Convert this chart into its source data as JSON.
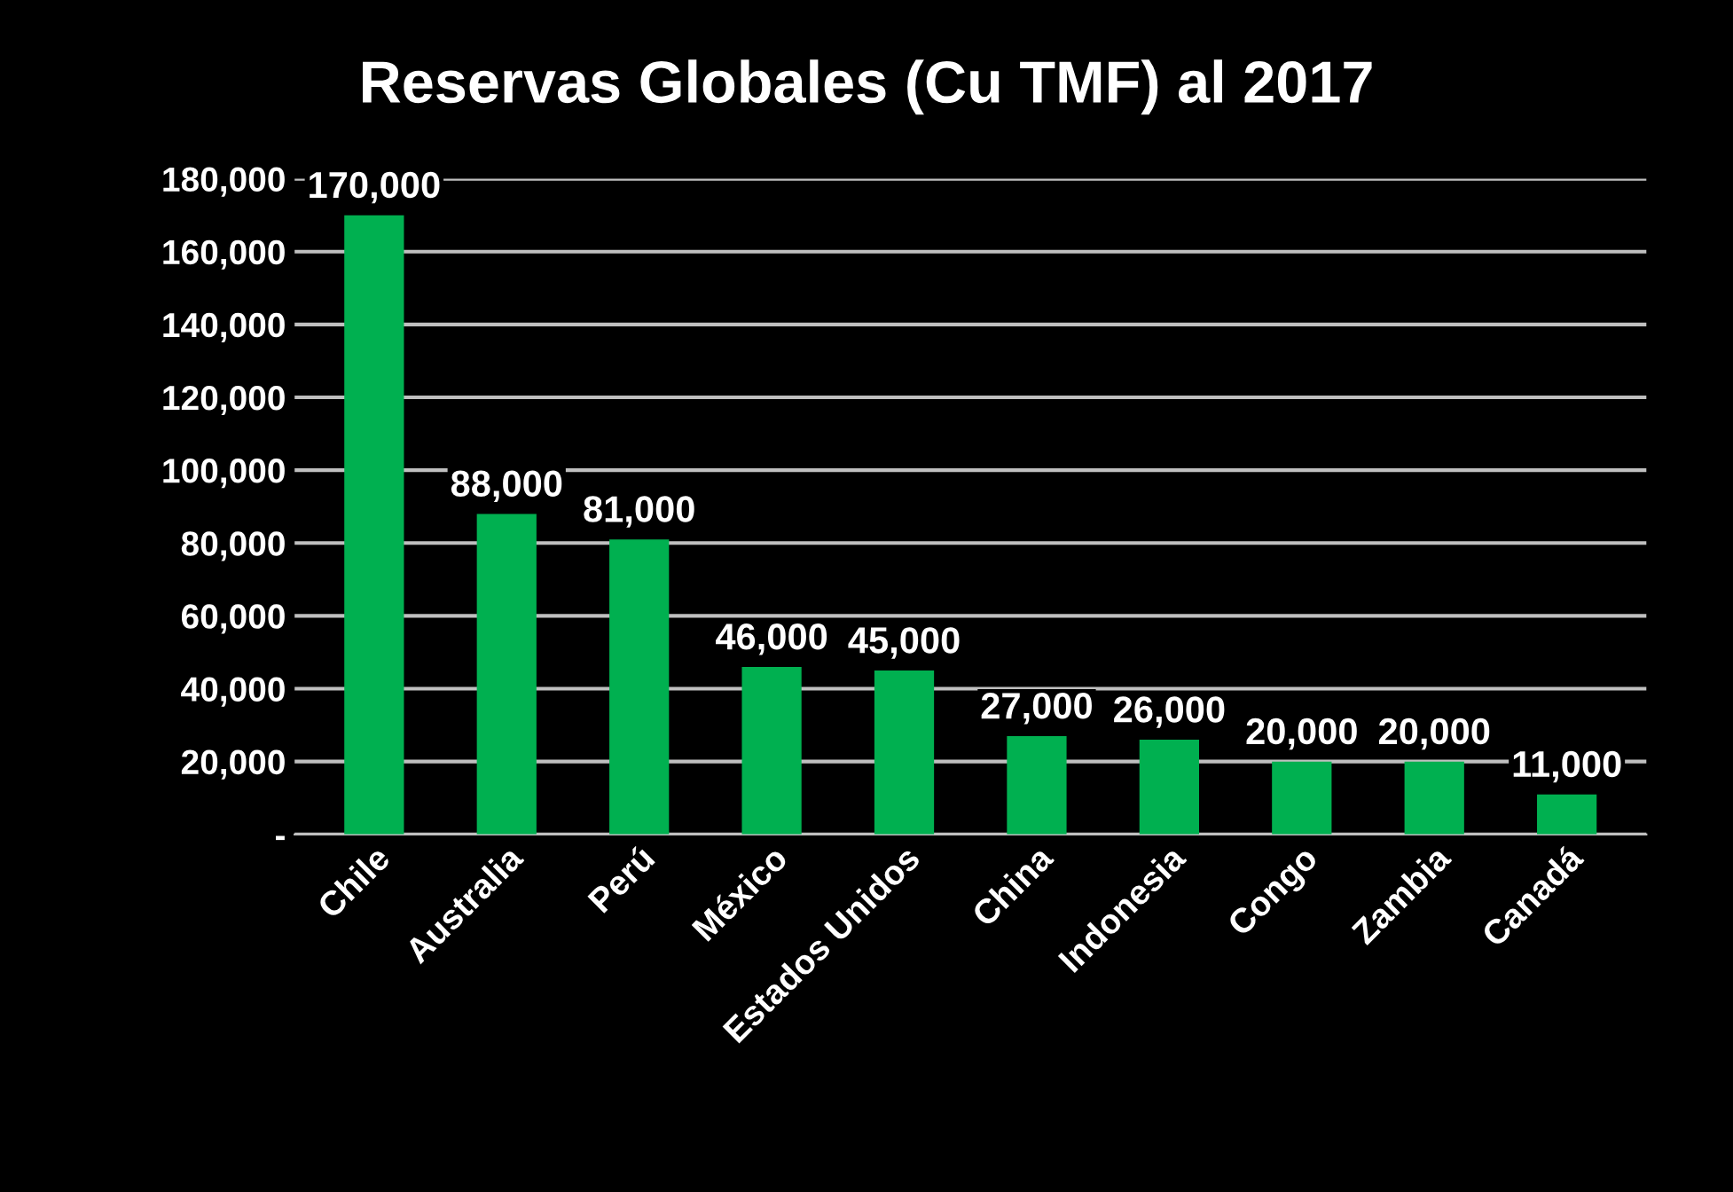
{
  "chart_data": {
    "type": "bar",
    "title": "Reservas Globales (Cu TMF) al 2017",
    "categories": [
      "Chile",
      "Australia",
      "Perú",
      "México",
      "Estados Unidos",
      "China",
      "Indonesia",
      "Congo",
      "Zambia",
      "Canadá"
    ],
    "values": [
      170000,
      88000,
      81000,
      46000,
      45000,
      27000,
      26000,
      20000,
      20000,
      11000
    ],
    "color": "#00b050",
    "value_labels": [
      "170,000",
      "88,000",
      "81,000",
      "46,000",
      "45,000",
      "27,000",
      "26,000",
      "20,000",
      "20,000",
      "11,000"
    ],
    "ylim": [
      0,
      180000
    ],
    "yticks": [
      {
        "value": 0,
        "label": "-"
      },
      {
        "value": 20000,
        "label": "20,000"
      },
      {
        "value": 40000,
        "label": "40,000"
      },
      {
        "value": 60000,
        "label": "60,000"
      },
      {
        "value": 80000,
        "label": "80,000"
      },
      {
        "value": 100000,
        "label": "100,000"
      },
      {
        "value": 120000,
        "label": "120,000"
      },
      {
        "value": 140000,
        "label": "140,000"
      },
      {
        "value": 160000,
        "label": "160,000"
      },
      {
        "value": 180000,
        "label": "180,000"
      }
    ],
    "grid": "y"
  }
}
